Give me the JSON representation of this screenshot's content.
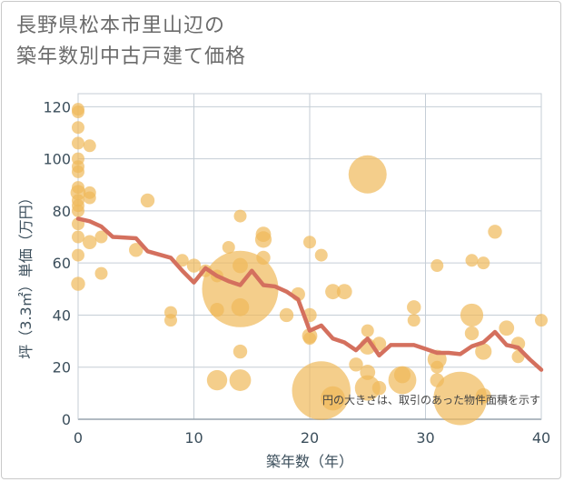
{
  "title_lines": [
    "長野県松本市里山辺の",
    "築年数別中古戸建て価格"
  ],
  "chart_data": {
    "type": "scatter",
    "title": "長野県松本市里山辺の築年数別中古戸建て価格",
    "xlabel": "築年数（年）",
    "ylabel": "坪（3.3㎡）単価（万円）",
    "xlim": [
      0,
      40
    ],
    "ylim": [
      0,
      125
    ],
    "x_ticks": [
      "0",
      "10",
      "20",
      "30",
      "40"
    ],
    "y_ticks": [
      "0",
      "20",
      "40",
      "60",
      "80",
      "100",
      "120"
    ],
    "grid": true,
    "note": "円の大きさは、取引のあった物件面積を示す",
    "colors": {
      "bubble": "#f0b95a",
      "line": "#d4705e",
      "grid": "#c5ced6",
      "axis": "#3c4f5c"
    },
    "series": [
      {
        "kind": "bubbles",
        "points": [
          {
            "x": 0,
            "y": 119,
            "s": 1
          },
          {
            "x": 0,
            "y": 118,
            "s": 1
          },
          {
            "x": 0,
            "y": 112,
            "s": 1
          },
          {
            "x": 0,
            "y": 106,
            "s": 1
          },
          {
            "x": 0,
            "y": 100,
            "s": 1
          },
          {
            "x": 0,
            "y": 97,
            "s": 1
          },
          {
            "x": 0,
            "y": 95,
            "s": 1
          },
          {
            "x": 0,
            "y": 89,
            "s": 1
          },
          {
            "x": 0,
            "y": 87,
            "s": 1.2
          },
          {
            "x": 0,
            "y": 84,
            "s": 1
          },
          {
            "x": 0,
            "y": 82,
            "s": 1
          },
          {
            "x": 0,
            "y": 80,
            "s": 1
          },
          {
            "x": 0,
            "y": 75,
            "s": 1
          },
          {
            "x": 0,
            "y": 70,
            "s": 1
          },
          {
            "x": 0,
            "y": 63,
            "s": 1
          },
          {
            "x": 0,
            "y": 52,
            "s": 1.1
          },
          {
            "x": 1,
            "y": 105,
            "s": 1
          },
          {
            "x": 1,
            "y": 87,
            "s": 1
          },
          {
            "x": 1,
            "y": 85,
            "s": 1
          },
          {
            "x": 1,
            "y": 68,
            "s": 1.1
          },
          {
            "x": 2,
            "y": 70,
            "s": 1
          },
          {
            "x": 2,
            "y": 56,
            "s": 1
          },
          {
            "x": 5,
            "y": 65,
            "s": 1.1
          },
          {
            "x": 6,
            "y": 84,
            "s": 1.1
          },
          {
            "x": 8,
            "y": 41,
            "s": 1
          },
          {
            "x": 8,
            "y": 38,
            "s": 1
          },
          {
            "x": 9,
            "y": 61,
            "s": 1
          },
          {
            "x": 10,
            "y": 59,
            "s": 1.1
          },
          {
            "x": 11,
            "y": 57,
            "s": 1
          },
          {
            "x": 12,
            "y": 55,
            "s": 1
          },
          {
            "x": 12,
            "y": 42,
            "s": 1.1
          },
          {
            "x": 12,
            "y": 15,
            "s": 1.6
          },
          {
            "x": 13,
            "y": 66,
            "s": 1
          },
          {
            "x": 14,
            "y": 78,
            "s": 1
          },
          {
            "x": 14,
            "y": 59,
            "s": 1.2
          },
          {
            "x": 14,
            "y": 50,
            "s": 6
          },
          {
            "x": 14,
            "y": 43,
            "s": 1.4
          },
          {
            "x": 14,
            "y": 26,
            "s": 1.1
          },
          {
            "x": 14,
            "y": 15,
            "s": 1.7
          },
          {
            "x": 16,
            "y": 71,
            "s": 1.2
          },
          {
            "x": 16,
            "y": 69,
            "s": 1.3
          },
          {
            "x": 16,
            "y": 62,
            "s": 1.1
          },
          {
            "x": 18,
            "y": 40,
            "s": 1.1
          },
          {
            "x": 19,
            "y": 48,
            "s": 1.1
          },
          {
            "x": 20,
            "y": 68,
            "s": 1
          },
          {
            "x": 20,
            "y": 40,
            "s": 1.1
          },
          {
            "x": 20,
            "y": 32,
            "s": 1.2
          },
          {
            "x": 20,
            "y": 31,
            "s": 1
          },
          {
            "x": 21,
            "y": 63,
            "s": 1
          },
          {
            "x": 21,
            "y": 11,
            "s": 4.6
          },
          {
            "x": 22,
            "y": 49,
            "s": 1.2
          },
          {
            "x": 22,
            "y": 8,
            "s": 1.9
          },
          {
            "x": 23,
            "y": 49,
            "s": 1.2
          },
          {
            "x": 24,
            "y": 21,
            "s": 1.1
          },
          {
            "x": 25,
            "y": 94,
            "s": 3
          },
          {
            "x": 25,
            "y": 34,
            "s": 1
          },
          {
            "x": 25,
            "y": 28,
            "s": 1.3
          },
          {
            "x": 25,
            "y": 18,
            "s": 1.2
          },
          {
            "x": 25,
            "y": 12,
            "s": 2
          },
          {
            "x": 26,
            "y": 29,
            "s": 1.1
          },
          {
            "x": 26,
            "y": 12,
            "s": 1.1
          },
          {
            "x": 28,
            "y": 15,
            "s": 2.2
          },
          {
            "x": 28,
            "y": 17,
            "s": 1.3
          },
          {
            "x": 29,
            "y": 43,
            "s": 1.1
          },
          {
            "x": 29,
            "y": 38,
            "s": 1
          },
          {
            "x": 31,
            "y": 59,
            "s": 1
          },
          {
            "x": 31,
            "y": 23,
            "s": 1.5
          },
          {
            "x": 31,
            "y": 20,
            "s": 1
          },
          {
            "x": 31,
            "y": 15,
            "s": 1.1
          },
          {
            "x": 33,
            "y": 8,
            "s": 4.2
          },
          {
            "x": 34,
            "y": 61,
            "s": 1
          },
          {
            "x": 34,
            "y": 40,
            "s": 1.8
          },
          {
            "x": 34,
            "y": 33,
            "s": 1.1
          },
          {
            "x": 35,
            "y": 60,
            "s": 1
          },
          {
            "x": 35,
            "y": 26,
            "s": 1.3
          },
          {
            "x": 35,
            "y": 9,
            "s": 1.2
          },
          {
            "x": 36,
            "y": 72,
            "s": 1.1
          },
          {
            "x": 37,
            "y": 35,
            "s": 1.2
          },
          {
            "x": 38,
            "y": 29,
            "s": 1.1
          },
          {
            "x": 38,
            "y": 24,
            "s": 1
          },
          {
            "x": 40,
            "y": 38,
            "s": 1
          }
        ]
      },
      {
        "kind": "line",
        "points": [
          {
            "x": 0,
            "y": 77
          },
          {
            "x": 1,
            "y": 76
          },
          {
            "x": 2,
            "y": 74
          },
          {
            "x": 3,
            "y": 70
          },
          {
            "x": 5,
            "y": 69.5
          },
          {
            "x": 6,
            "y": 64.5
          },
          {
            "x": 8,
            "y": 62
          },
          {
            "x": 9,
            "y": 57
          },
          {
            "x": 10,
            "y": 52.5
          },
          {
            "x": 11,
            "y": 58
          },
          {
            "x": 12,
            "y": 55
          },
          {
            "x": 13,
            "y": 53
          },
          {
            "x": 14,
            "y": 51.5
          },
          {
            "x": 15,
            "y": 57
          },
          {
            "x": 16,
            "y": 51.5
          },
          {
            "x": 17,
            "y": 51
          },
          {
            "x": 18,
            "y": 49
          },
          {
            "x": 19,
            "y": 46
          },
          {
            "x": 20,
            "y": 34
          },
          {
            "x": 21,
            "y": 36
          },
          {
            "x": 22,
            "y": 31
          },
          {
            "x": 23,
            "y": 29.5
          },
          {
            "x": 24,
            "y": 26.5
          },
          {
            "x": 25,
            "y": 31
          },
          {
            "x": 26,
            "y": 24.5
          },
          {
            "x": 27,
            "y": 28.5
          },
          {
            "x": 28,
            "y": 28.5
          },
          {
            "x": 29,
            "y": 28.5
          },
          {
            "x": 30,
            "y": 27
          },
          {
            "x": 31,
            "y": 25.5
          },
          {
            "x": 32,
            "y": 25.5
          },
          {
            "x": 33,
            "y": 25
          },
          {
            "x": 34,
            "y": 28
          },
          {
            "x": 35,
            "y": 29.5
          },
          {
            "x": 36,
            "y": 33.5
          },
          {
            "x": 37,
            "y": 28.5
          },
          {
            "x": 38,
            "y": 27.5
          },
          {
            "x": 39,
            "y": 23
          },
          {
            "x": 40,
            "y": 19
          }
        ]
      }
    ]
  }
}
